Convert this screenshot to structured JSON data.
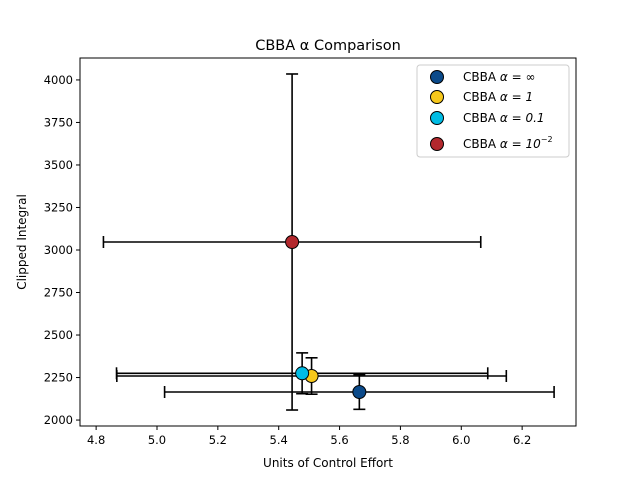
{
  "chart_data": {
    "type": "scatter",
    "title": "CBBA α Comparison",
    "xlabel": "Units of Control Effort",
    "ylabel": "Clipped Integral",
    "xlim": [
      4.747,
      6.377
    ],
    "ylim": [
      1965,
      4129
    ],
    "xticks": [
      4.8,
      5.0,
      5.2,
      5.4,
      5.6,
      5.8,
      6.0,
      6.2
    ],
    "xtick_labels": [
      "4.8",
      "5.0",
      "5.2",
      "5.4",
      "5.6",
      "5.8",
      "6.0",
      "6.2"
    ],
    "yticks": [
      2000,
      2250,
      2500,
      2750,
      3000,
      3250,
      3500,
      3750,
      4000
    ],
    "ytick_labels": [
      "2000",
      "2250",
      "2500",
      "2750",
      "3000",
      "3250",
      "3500",
      "3750",
      "4000"
    ],
    "grid": false,
    "legend_position": "top-right",
    "series": [
      {
        "name": "CBBA α = ∞",
        "label_prefix": "CBBA ",
        "label_alpha": "α = ∞",
        "label_sup": "",
        "color": "#0b4a8a",
        "x": 5.665,
        "y": 2165,
        "xerr": 0.64,
        "yerr": 102
      },
      {
        "name": "CBBA α = 1",
        "label_prefix": "CBBA ",
        "label_alpha": "α = 1",
        "label_sup": "",
        "color": "#f7c81c",
        "x": 5.508,
        "y": 2259,
        "xerr": 0.64,
        "yerr": 107
      },
      {
        "name": "CBBA α = 0.1",
        "label_prefix": "CBBA ",
        "label_alpha": "α = 0.1",
        "label_sup": "",
        "color": "#00bce4",
        "x": 5.477,
        "y": 2275,
        "xerr": 0.61,
        "yerr": 120
      },
      {
        "name": "CBBA α = 10^-2",
        "label_prefix": "CBBA ",
        "label_alpha": "α = 10",
        "label_sup": "−2",
        "color": "#b3282d",
        "x": 5.444,
        "y": 3047,
        "xerr": 0.62,
        "yerr": 988
      }
    ]
  }
}
